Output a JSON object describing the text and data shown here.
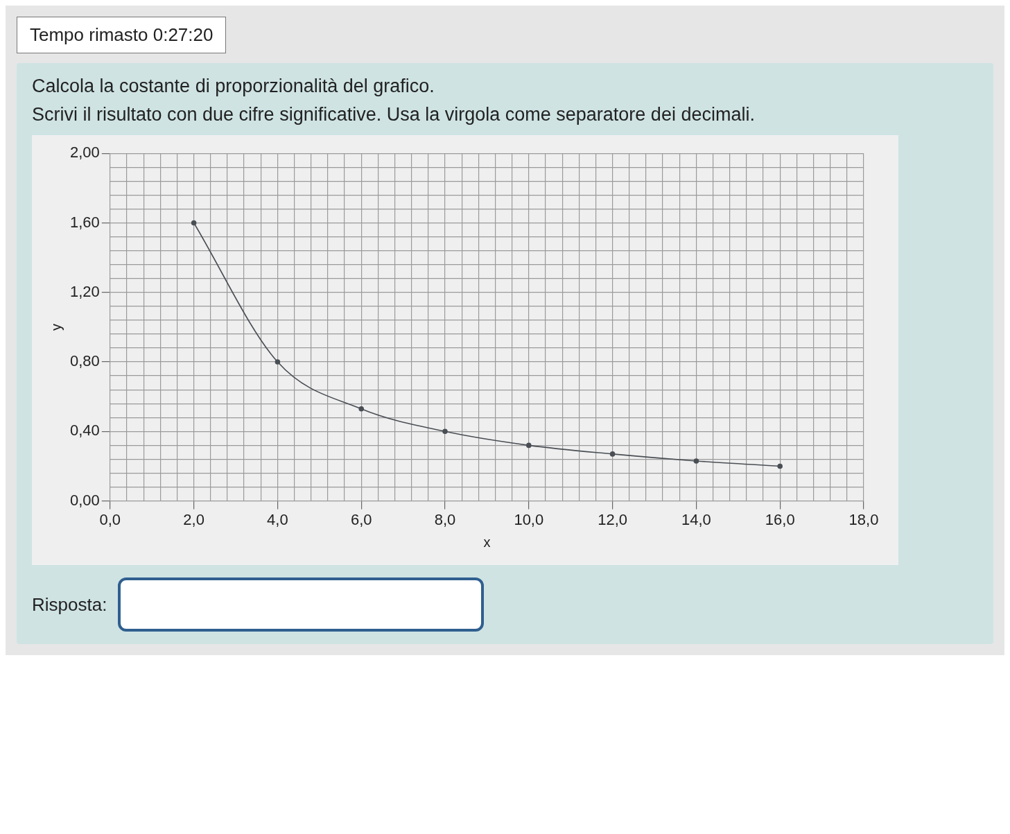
{
  "chart_data": {
    "type": "line",
    "title": "Calcola la costante di proporzionalità del grafico.",
    "subtitle": "Scrivi il risultato con due cifre significative. Usa la virgola come separatore dei decimali.",
    "annotations": [
      "Tempo rimasto 0:27:20",
      "Risposta:"
    ],
    "xlabel": "x",
    "ylabel": "y",
    "x": [
      2,
      4,
      6,
      8,
      10,
      12,
      14,
      16
    ],
    "series": [
      {
        "color": "#4a4f55",
        "values": [
          1.6,
          0.8,
          0.53,
          0.4,
          0.32,
          0.27,
          0.23,
          0.2
        ]
      }
    ],
    "marker": "circle",
    "line_style": "solid",
    "grid": true,
    "legend": false,
    "xlim": [
      0,
      18
    ],
    "ylim": [
      0,
      2
    ],
    "xticks": [
      {
        "value": 0,
        "label": "0,0"
      },
      {
        "value": 0.4,
        "label": null
      },
      {
        "value": 0.8,
        "label": null
      },
      {
        "value": 1.2,
        "label": null
      },
      {
        "value": 1.6,
        "label": null
      },
      {
        "value": 2,
        "label": "2,0"
      },
      {
        "value": 2.4,
        "label": null
      },
      {
        "value": 2.8,
        "label": null
      },
      {
        "value": 3.2,
        "label": null
      },
      {
        "value": 3.6,
        "label": null
      },
      {
        "value": 4,
        "label": "4,0"
      },
      {
        "value": 4.4,
        "label": null
      },
      {
        "value": 4.8,
        "label": null
      },
      {
        "value": 5.2,
        "label": null
      },
      {
        "value": 5.6,
        "label": null
      },
      {
        "value": 6,
        "label": "6,0"
      },
      {
        "value": 6.4,
        "label": null
      },
      {
        "value": 6.8,
        "label": null
      },
      {
        "value": 7.2,
        "label": null
      },
      {
        "value": 7.6,
        "label": null
      },
      {
        "value": 8,
        "label": "8,0"
      },
      {
        "value": 8.4,
        "label": null
      },
      {
        "value": 8.8,
        "label": null
      },
      {
        "value": 9.2,
        "label": null
      },
      {
        "value": 9.6,
        "label": null
      },
      {
        "value": 10,
        "label": "10,0"
      },
      {
        "value": 10.4,
        "label": null
      },
      {
        "value": 10.8,
        "label": null
      },
      {
        "value": 11.2,
        "label": null
      },
      {
        "value": 11.6,
        "label": null
      },
      {
        "value": 12,
        "label": "12,0"
      },
      {
        "value": 12.4,
        "label": null
      },
      {
        "value": 12.8,
        "label": null
      },
      {
        "value": 13.2,
        "label": null
      },
      {
        "value": 13.6,
        "label": null
      },
      {
        "value": 14,
        "label": "14,0"
      },
      {
        "value": 14.4,
        "label": null
      },
      {
        "value": 14.8,
        "label": null
      },
      {
        "value": 15.2,
        "label": null
      },
      {
        "value": 15.6,
        "label": null
      },
      {
        "value": 16,
        "label": "16,0"
      },
      {
        "value": 16.4,
        "label": null
      },
      {
        "value": 16.8,
        "label": null
      },
      {
        "value": 17.2,
        "label": null
      },
      {
        "value": 17.6,
        "label": null
      },
      {
        "value": 18,
        "label": "18,0"
      }
    ],
    "yticks": [
      {
        "value": 0,
        "label": "0,00"
      },
      {
        "value": 0.08,
        "label": null
      },
      {
        "value": 0.16,
        "label": null
      },
      {
        "value": 0.24,
        "label": null
      },
      {
        "value": 0.32,
        "label": null
      },
      {
        "value": 0.4,
        "label": "0,40"
      },
      {
        "value": 0.48,
        "label": null
      },
      {
        "value": 0.56,
        "label": null
      },
      {
        "value": 0.64,
        "label": null
      },
      {
        "value": 0.72,
        "label": null
      },
      {
        "value": 0.8,
        "label": "0,80"
      },
      {
        "value": 0.88,
        "label": null
      },
      {
        "value": 0.96,
        "label": null
      },
      {
        "value": 1.04,
        "label": null
      },
      {
        "value": 1.12,
        "label": null
      },
      {
        "value": 1.2,
        "label": "1,20"
      },
      {
        "value": 1.28,
        "label": null
      },
      {
        "value": 1.36,
        "label": null
      },
      {
        "value": 1.44,
        "label": null
      },
      {
        "value": 1.52,
        "label": null
      },
      {
        "value": 1.6,
        "label": "1,60"
      },
      {
        "value": 1.68,
        "label": null
      },
      {
        "value": 1.76,
        "label": null
      },
      {
        "value": 1.84,
        "label": null
      },
      {
        "value": 1.92,
        "label": null
      },
      {
        "value": 2,
        "label": "2,00"
      }
    ]
  }
}
